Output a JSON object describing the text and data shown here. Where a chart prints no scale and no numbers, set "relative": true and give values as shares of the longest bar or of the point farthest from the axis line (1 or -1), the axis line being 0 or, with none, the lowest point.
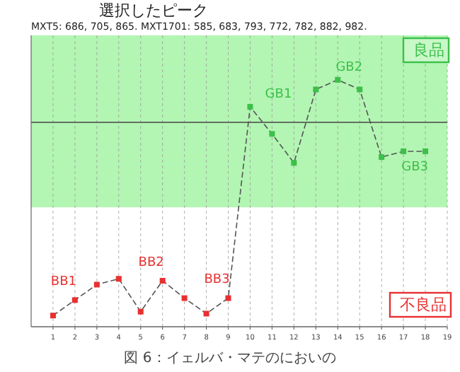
{
  "chart_data": {
    "type": "line",
    "title": "選択したピーク",
    "subtitle": "MXT5: 686, 705, 865. MXT1701: 585, 683, 793, 772, 782, 882, 982.",
    "relative": true,
    "x": [
      1,
      2,
      3,
      4,
      5,
      6,
      7,
      8,
      9,
      10,
      11,
      12,
      13,
      14,
      15,
      16,
      17,
      18
    ],
    "xlim": [
      0,
      19
    ],
    "xticks": [
      1,
      2,
      3,
      4,
      5,
      6,
      7,
      8,
      9,
      10,
      11,
      12,
      13,
      14,
      15,
      16,
      17,
      18,
      19
    ],
    "series": [
      {
        "color": "#555555",
        "values": [
          -1,
          -0.92,
          -0.84,
          -0.81,
          -0.98,
          -0.82,
          -0.91,
          -0.99,
          -0.91,
          0.08,
          -0.06,
          -0.21,
          0.17,
          0.22,
          0.17,
          -0.18,
          -0.15,
          -0.15
        ],
        "colors": [
          "#e83030",
          "#e83030",
          "#e83030",
          "#e83030",
          "#e83030",
          "#e83030",
          "#e83030",
          "#e83030",
          "#e83030",
          "#3cc04a",
          "#3cc04a",
          "#3cc04a",
          "#3cc04a",
          "#3cc04a",
          "#3cc04a",
          "#3cc04a",
          "#3cc04a",
          "#3cc04a"
        ]
      }
    ],
    "marker": "square",
    "line_style": "dashed",
    "grid": "x",
    "bands": [
      {
        "axis": "y",
        "from": -0.44,
        "to": 0.45,
        "color": "#b3f5b3"
      }
    ],
    "annotations": [
      "良品",
      "不良品",
      "図 6：イェルバ・マテのにおいの",
      {
        "text": "BB1",
        "x": 2,
        "y": -0.92
      },
      {
        "text": "BB2",
        "x": 6,
        "y": -0.82
      },
      {
        "text": "BB3",
        "x": 9,
        "y": -0.91
      },
      {
        "text": "GB1",
        "x": 10,
        "y": 0.08
      },
      {
        "text": "GB2",
        "x": 14,
        "y": 0.22
      },
      {
        "text": "GB3",
        "x": 17,
        "y": -0.15
      }
    ]
  }
}
